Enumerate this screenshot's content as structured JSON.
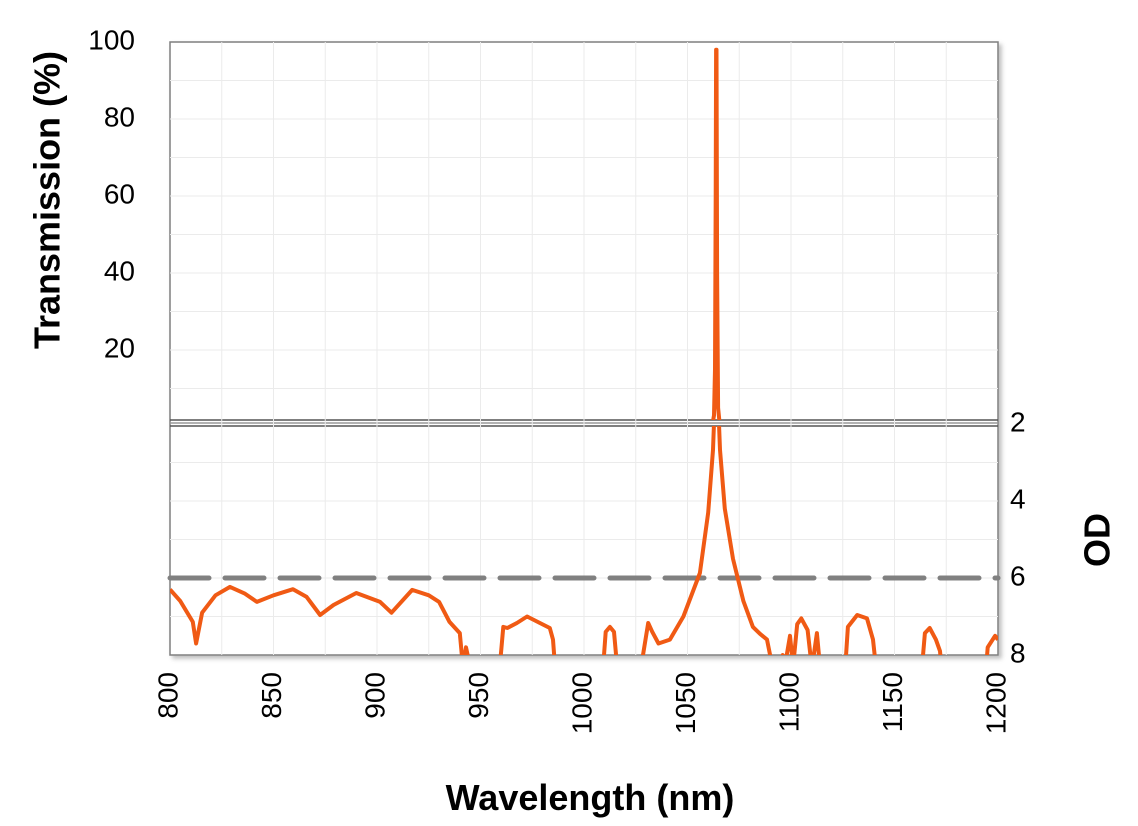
{
  "chart_data": {
    "type": "line",
    "xlabel": "Wavelength (nm)",
    "xlim": [
      800,
      1200
    ],
    "xticks": [
      800,
      850,
      900,
      950,
      1000,
      1050,
      1100,
      1150,
      1200
    ],
    "grid": true,
    "colors": {
      "series": "#f05a14",
      "reference": "#808080",
      "grid": "#ebebeb",
      "frame": "#7f7f7f"
    },
    "panels": [
      {
        "name": "transmission",
        "ylabel": "Transmission (%)",
        "ylim": [
          0,
          100
        ],
        "yticks": [
          20,
          40,
          60,
          80,
          100
        ],
        "series": {
          "x": [
            1062.0,
            1062.8,
            1063.3,
            1063.6,
            1063.8,
            1064.0,
            1064.3,
            1064.8,
            1065.6
          ],
          "y": [
            0.5,
            3,
            15,
            60,
            98,
            98,
            40,
            5,
            0.5
          ]
        }
      },
      {
        "name": "optical-density",
        "ylabel": "OD",
        "ylim": [
          2,
          8
        ],
        "yticks": [
          2,
          4,
          6,
          8
        ],
        "reference_line": {
          "y": 6,
          "style": "dashed"
        },
        "series": {
          "x": [
            800,
            805,
            811,
            812.6,
            815.5,
            822,
            829,
            836,
            842,
            850,
            859.4,
            866,
            872.5,
            879,
            890,
            901.5,
            907,
            917,
            925,
            930,
            935,
            940,
            941.5,
            943,
            945,
            946,
            959,
            961,
            963,
            967.6,
            972.5,
            978.7,
            983.5,
            985,
            986,
            987,
            1009,
            1010.5,
            1012.5,
            1014.5,
            1016,
            1017,
            1018,
            1027,
            1028.5,
            1031,
            1033,
            1036,
            1041.5,
            1048,
            1056,
            1060,
            1062.3,
            1063.5,
            1064,
            1064.5,
            1065.7,
            1068,
            1072,
            1077,
            1081.6,
            1085,
            1088.4,
            1091,
            1093,
            1096,
            1097,
            1099.5,
            1101,
            1103,
            1105,
            1108,
            1110,
            1111,
            1112.5,
            1114,
            1115,
            1126,
            1127.5,
            1132,
            1136.7,
            1139.6,
            1141,
            1142,
            1163,
            1164.7,
            1167,
            1170,
            1172,
            1173,
            1194,
            1195,
            1198.6,
            1200
          ],
          "y": [
            6.3,
            6.6,
            7.14,
            7.7,
            6.9,
            6.45,
            6.23,
            6.4,
            6.62,
            6.45,
            6.29,
            6.49,
            6.96,
            6.7,
            6.39,
            6.62,
            6.9,
            6.31,
            6.45,
            6.62,
            7.14,
            7.43,
            8.3,
            7.8,
            8.3,
            8.5,
            8.5,
            7.27,
            7.3,
            7.17,
            7.0,
            7.17,
            7.3,
            7.6,
            8.3,
            8.5,
            8.5,
            7.4,
            7.27,
            7.4,
            8.3,
            8.5,
            8.5,
            8.5,
            8.0,
            7.17,
            7.4,
            7.7,
            7.6,
            7.0,
            5.87,
            4.3,
            2.67,
            1.0,
            0.01,
            1.0,
            2.67,
            4.2,
            5.5,
            6.6,
            7.27,
            7.45,
            7.6,
            8.3,
            8.5,
            8.0,
            8.3,
            7.5,
            8.3,
            7.2,
            7.05,
            7.35,
            8.3,
            8.0,
            7.43,
            8.3,
            8.5,
            8.5,
            7.27,
            6.96,
            7.05,
            7.6,
            8.3,
            8.5,
            8.5,
            7.43,
            7.3,
            7.6,
            7.9,
            8.5,
            8.5,
            7.8,
            7.5,
            7.6
          ]
        }
      }
    ]
  }
}
